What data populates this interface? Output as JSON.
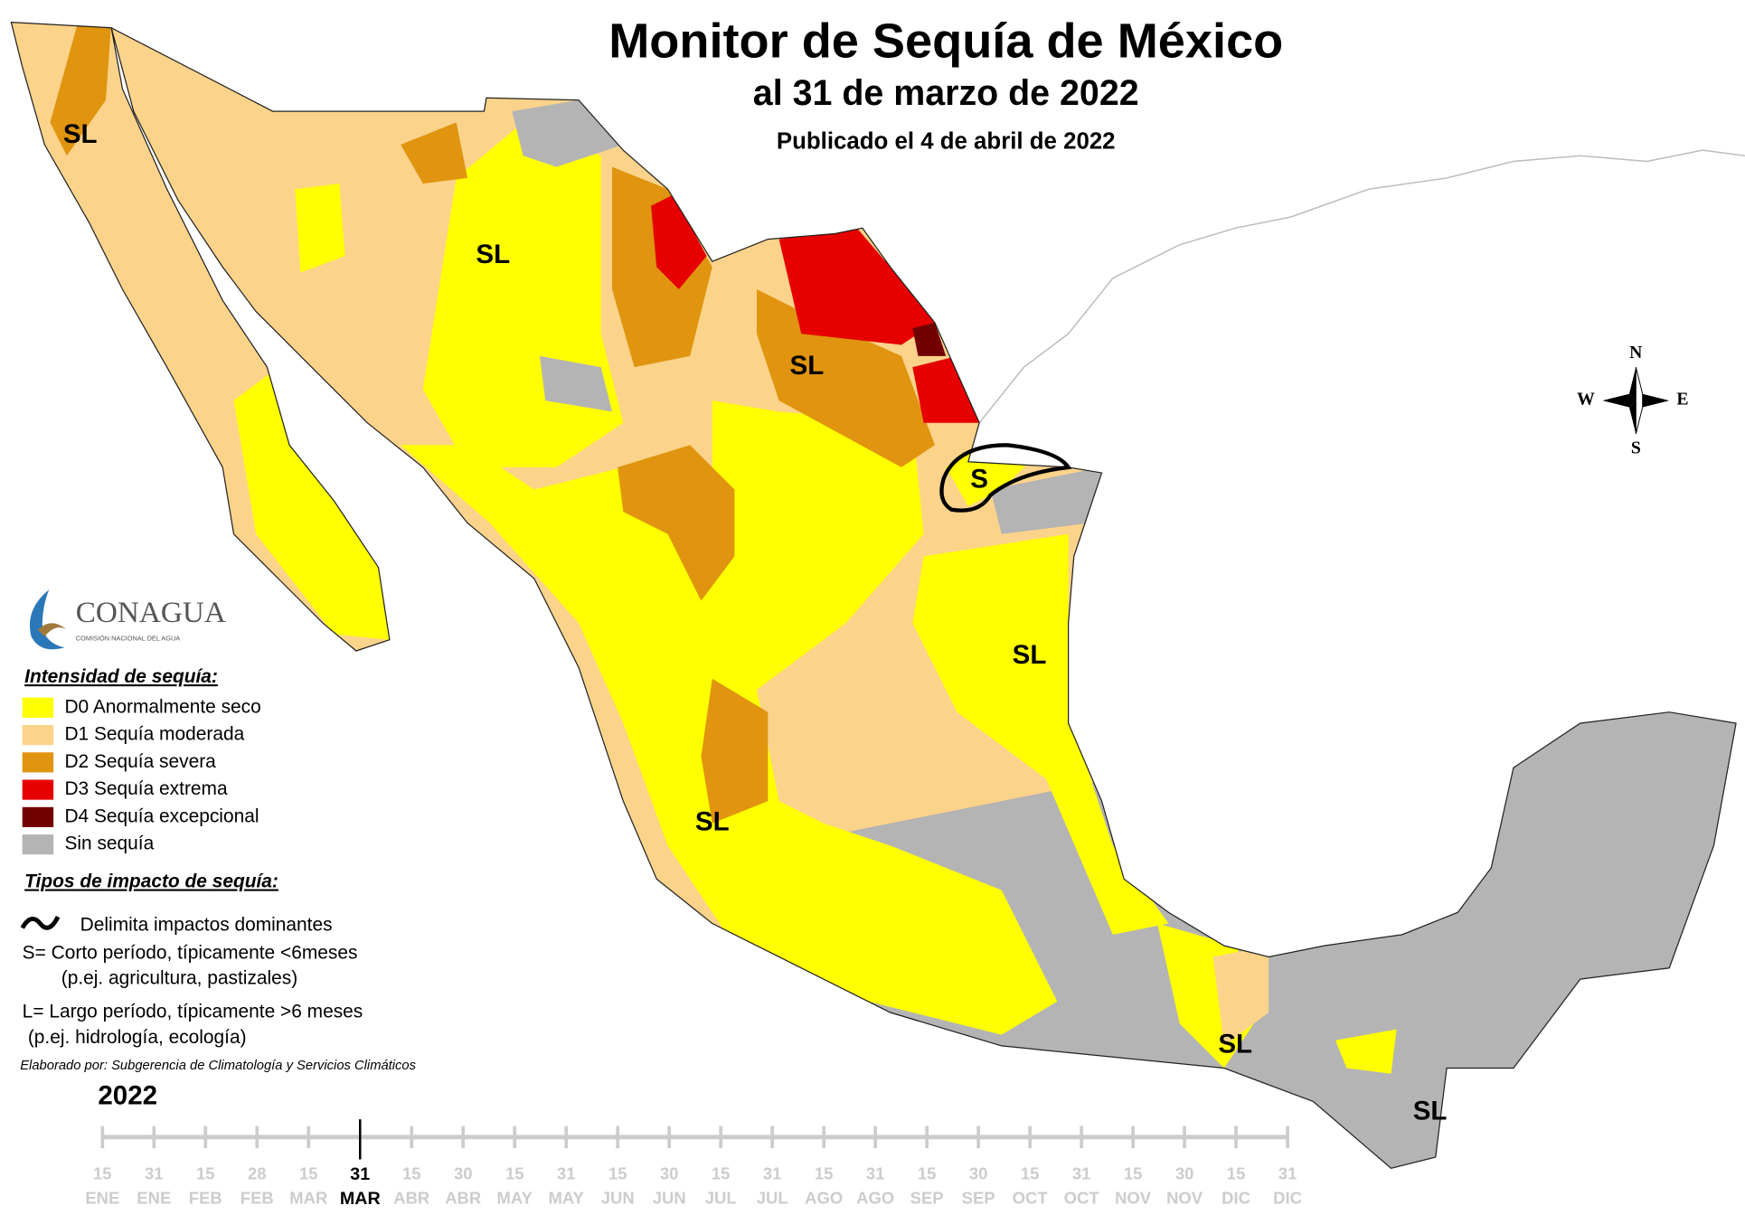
{
  "header": {
    "title": "Monitor de Sequía de México",
    "subtitle": "al 31 de marzo de 2022",
    "published": "Publicado el 4 de abril de 2022"
  },
  "map": {
    "labels": [
      "SL",
      "SL",
      "SL",
      "S",
      "SL",
      "SL",
      "SL",
      "SL"
    ]
  },
  "compass": {
    "n": "N",
    "s": "S",
    "e": "E",
    "w": "W"
  },
  "logo": {
    "name": "CONAGUA",
    "tagline": "COMISIÓN NACIONAL DEL AGUA"
  },
  "legend": {
    "title": "Intensidad de sequía:",
    "items": [
      {
        "label": "D0 Anormalmente seco",
        "color": "#ffff00"
      },
      {
        "label": "D1 Sequía moderada",
        "color": "#fcd38a"
      },
      {
        "label": "D2 Sequía severa",
        "color": "#e0940f"
      },
      {
        "label": "D3 Sequía extrema",
        "color": "#e60000"
      },
      {
        "label": "D4 Sequía excepcional",
        "color": "#730000"
      },
      {
        "label": "Sin sequía",
        "color": "#b4b4b4"
      }
    ]
  },
  "impacts": {
    "title": "Tipos de impacto de sequía:",
    "line": "Delimita impactos dominantes",
    "short": [
      "S= Corto período, típicamente <6meses",
      "(p.ej. agricultura, pastizales)"
    ],
    "long": [
      "L= Largo período, típicamente >6 meses",
      "(p.ej. hidrología, ecología)"
    ]
  },
  "credit": "Elaborado por: Subgerencia de Climatología y Servicios Climáticos",
  "timeline": {
    "year": "2022",
    "days": [
      "15",
      "31",
      "15",
      "28",
      "15",
      "31",
      "15",
      "30",
      "15",
      "31",
      "15",
      "30",
      "15",
      "31",
      "15",
      "31",
      "15",
      "30",
      "15",
      "31",
      "15",
      "30",
      "15",
      "31"
    ],
    "months": [
      "ENE",
      "ENE",
      "FEB",
      "FEB",
      "MAR",
      "MAR",
      "ABR",
      "ABR",
      "MAY",
      "MAY",
      "JUN",
      "JUN",
      "JUL",
      "JUL",
      "AGO",
      "AGO",
      "SEP",
      "SEP",
      "OCT",
      "OCT",
      "NOV",
      "NOV",
      "DIC",
      "DIC"
    ],
    "current_index": 5
  }
}
